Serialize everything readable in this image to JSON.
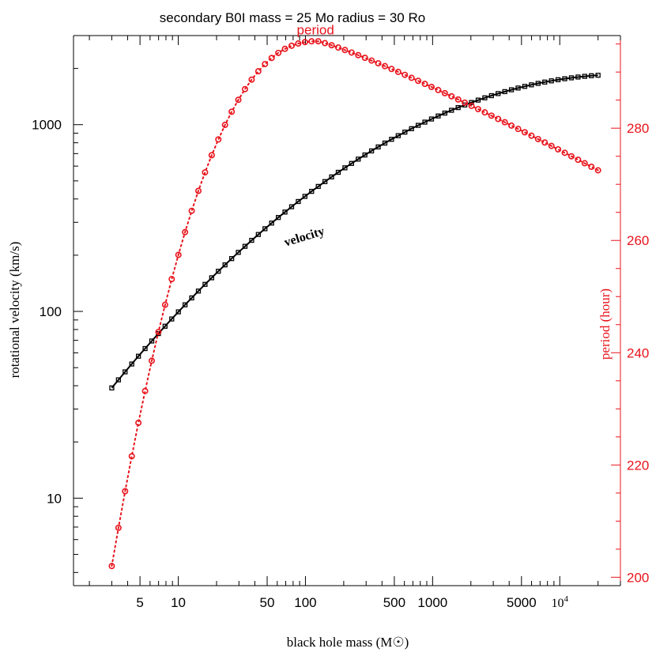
{
  "chart_data": {
    "type": "line",
    "title": "secondary B0I mass = 25 Mo radius = 30 Ro",
    "xlabel": "black hole mass (M☉)",
    "ylabel_left": "rotational velocity (km/s)",
    "ylabel_right": "period (hour)",
    "x_scale": "log",
    "y_left_scale": "log",
    "y_right_scale": "linear",
    "xlim": [
      1.5,
      30000
    ],
    "ylim_left": [
      3.4,
      3000
    ],
    "ylim_right": [
      198.5,
      296.5
    ],
    "grid": false,
    "x_tick_labels": [
      {
        "value": 5,
        "label": "5"
      },
      {
        "value": 10,
        "label": "10"
      },
      {
        "value": 50,
        "label": "50"
      },
      {
        "value": 100,
        "label": "100"
      },
      {
        "value": 500,
        "label": "500"
      },
      {
        "value": 1000,
        "label": "1000"
      },
      {
        "value": 5000,
        "label": "5000"
      },
      {
        "value": 10000,
        "label": "10",
        "exponent": "4"
      }
    ],
    "y_left_tick_labels": [
      {
        "value": 10,
        "label": "10"
      },
      {
        "value": 100,
        "label": "100"
      },
      {
        "value": 1000,
        "label": "1000"
      }
    ],
    "y_right_tick_labels": [
      {
        "value": 200,
        "label": "200"
      },
      {
        "value": 220,
        "label": "220"
      },
      {
        "value": 240,
        "label": "240"
      },
      {
        "value": 260,
        "label": "260"
      },
      {
        "value": 280,
        "label": "280"
      }
    ],
    "series": [
      {
        "name": "velocity",
        "axis": "left",
        "color": "#000000",
        "marker": "square",
        "line": "solid",
        "label": {
          "text": "velocity",
          "x": 100,
          "y": 240,
          "rotation": -17
        },
        "x": [
          3,
          20000
        ],
        "y_model": {
          "kind": "power-law-fit",
          "note_points": [
            [
              3,
              32
            ],
            [
              10,
              90
            ],
            [
              100,
              390
            ],
            [
              1000,
              980
            ],
            [
              20000,
              2400
            ]
          ]
        }
      },
      {
        "name": "period",
        "axis": "right",
        "color": "#e8141c",
        "marker": "circle",
        "line": "dotted",
        "label": {
          "text": "period",
          "x": 120,
          "y": 297
        },
        "x_range": [
          3,
          20000
        ],
        "y_range": [
          202,
          295
        ],
        "peak": {
          "x": 125,
          "y": 295.5
        },
        "end_y": 272.5
      }
    ]
  }
}
